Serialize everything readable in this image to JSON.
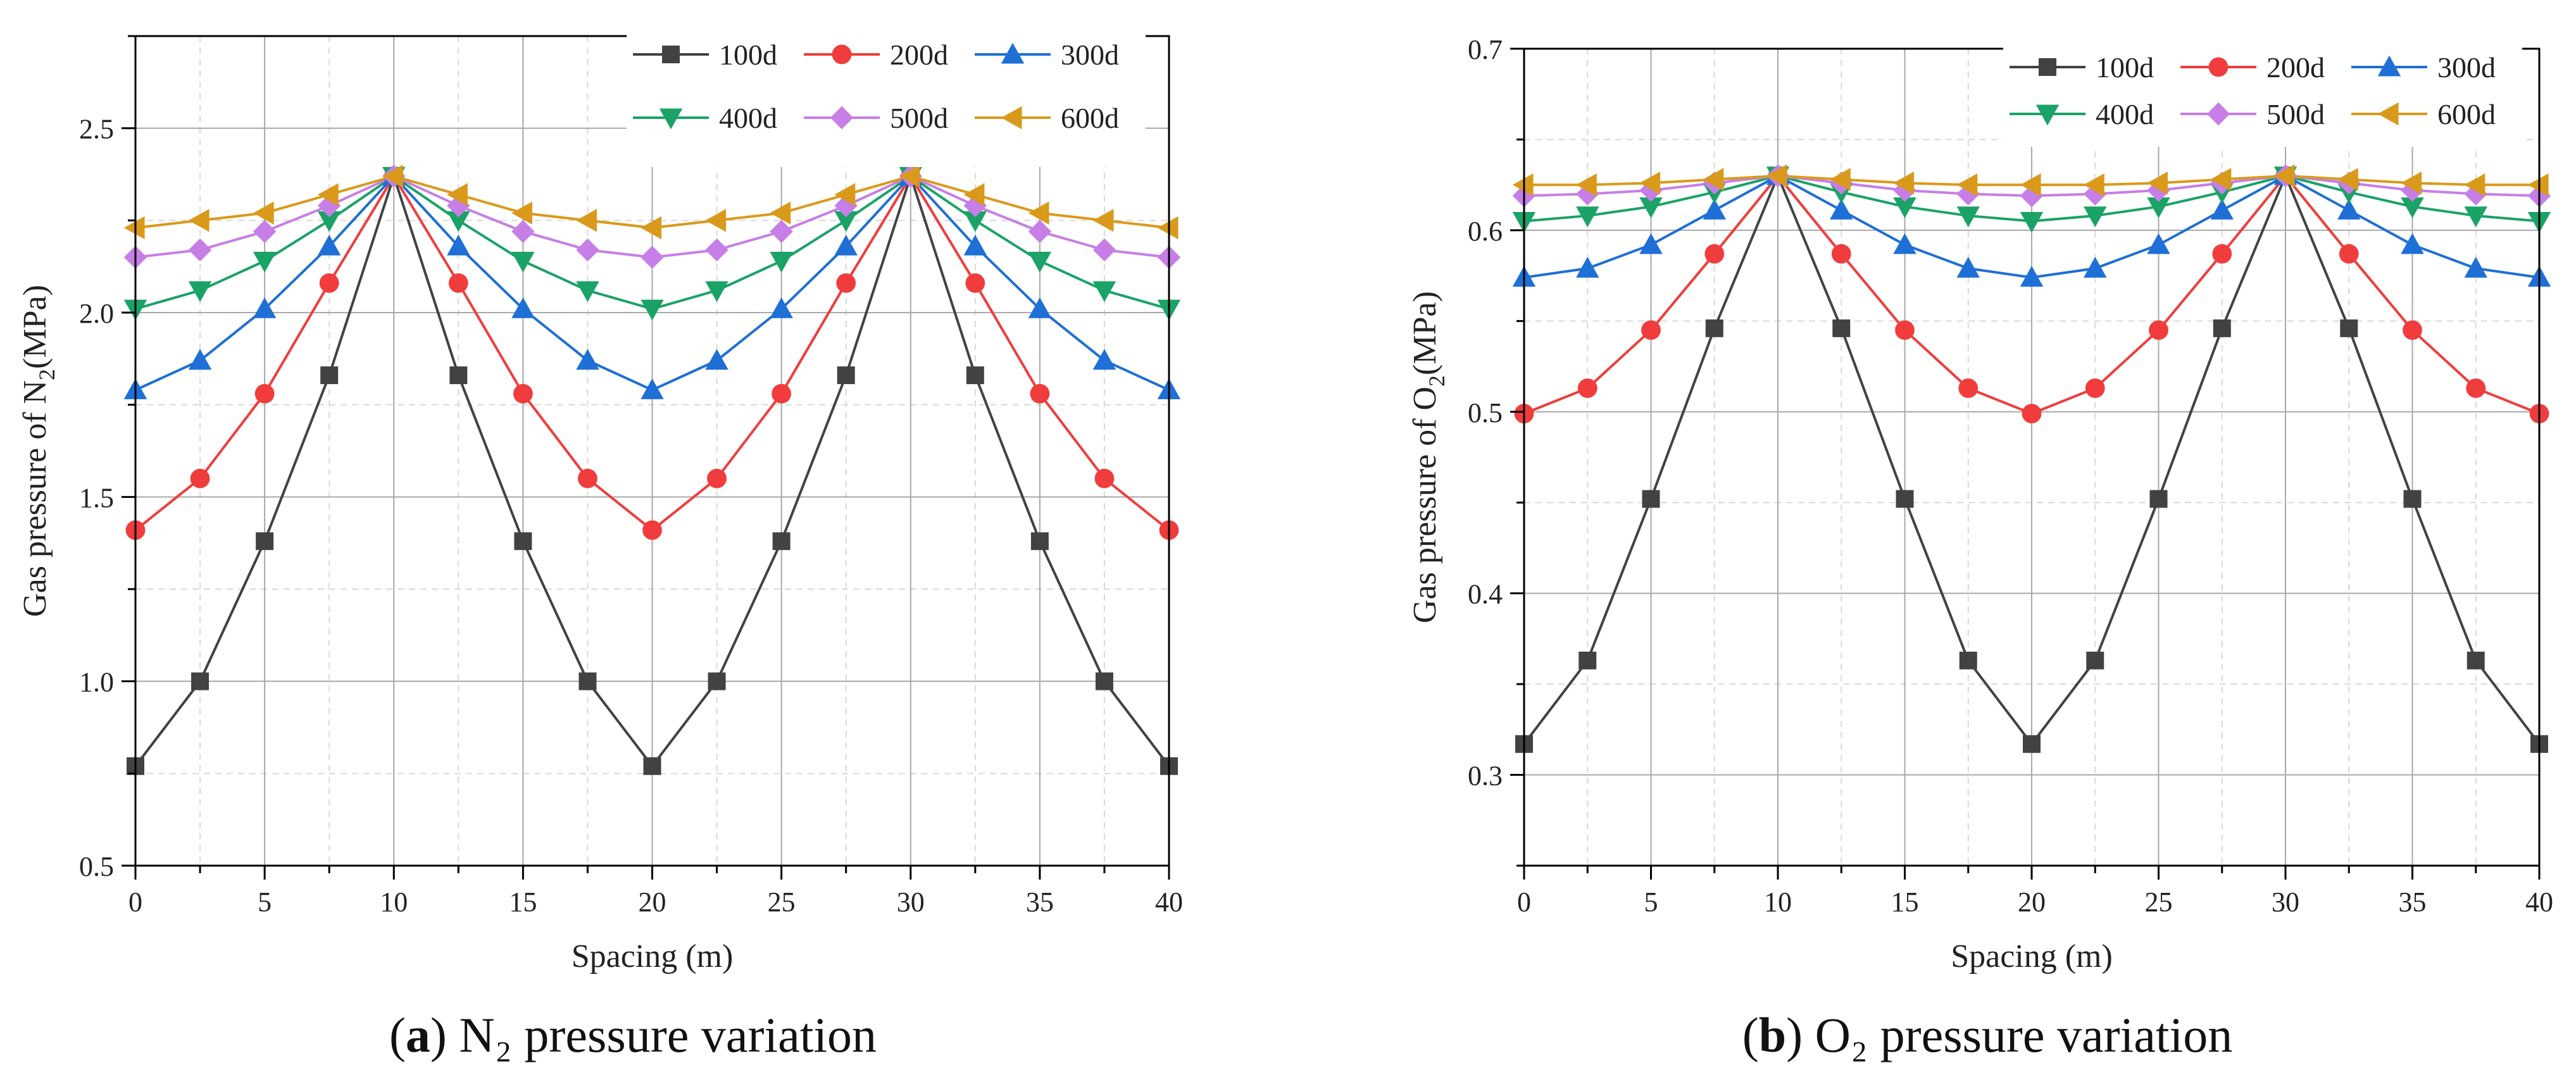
{
  "figure": {
    "captions": [
      {
        "letter": "a",
        "text": "N₂ pressure variation"
      },
      {
        "letter": "b",
        "text": "O₂ pressure variation"
      }
    ]
  },
  "chart_data": [
    {
      "type": "line",
      "title": "",
      "xlabel": "Spacing (m)",
      "ylabel": "Gas pressure of N2(MPa)",
      "ylabel_parts": {
        "pre": "Gas pressure of N",
        "sub": "2",
        "post": "(MPa)"
      },
      "xlim": [
        0,
        40
      ],
      "ylim": [
        0.5,
        2.75
      ],
      "xticks": [
        0,
        5,
        10,
        15,
        20,
        25,
        30,
        35,
        40
      ],
      "yticks": [
        0.5,
        1.0,
        1.5,
        2.0,
        2.5
      ],
      "ytick_labels": [
        "0.5",
        "1.0",
        "1.5",
        "2.0",
        "2.5"
      ],
      "grid": true,
      "legend": {
        "position": "top-right",
        "columns": 3
      },
      "x": [
        0,
        2.5,
        5,
        7.5,
        10,
        12.5,
        15,
        17.5,
        20,
        22.5,
        25,
        27.5,
        30,
        32.5,
        35,
        37.5,
        40
      ],
      "series": [
        {
          "name": "100d",
          "color": "#424242",
          "marker": "square",
          "values": [
            0.77,
            1.0,
            1.38,
            1.83,
            2.37,
            1.83,
            1.38,
            1.0,
            0.77,
            1.0,
            1.38,
            1.83,
            2.37,
            1.83,
            1.38,
            1.0,
            0.77
          ]
        },
        {
          "name": "200d",
          "color": "#f03c3c",
          "marker": "circle",
          "values": [
            1.41,
            1.55,
            1.78,
            2.08,
            2.37,
            2.08,
            1.78,
            1.55,
            1.41,
            1.55,
            1.78,
            2.08,
            2.37,
            2.08,
            1.78,
            1.55,
            1.41
          ]
        },
        {
          "name": "300d",
          "color": "#1e6fd6",
          "marker": "triangle-up",
          "values": [
            1.79,
            1.87,
            2.01,
            2.18,
            2.37,
            2.18,
            2.01,
            1.87,
            1.79,
            1.87,
            2.01,
            2.18,
            2.37,
            2.18,
            2.01,
            1.87,
            1.79
          ]
        },
        {
          "name": "400d",
          "color": "#1aa267",
          "marker": "triangle-down",
          "values": [
            2.01,
            2.06,
            2.14,
            2.25,
            2.37,
            2.25,
            2.14,
            2.06,
            2.01,
            2.06,
            2.14,
            2.25,
            2.37,
            2.25,
            2.14,
            2.06,
            2.01
          ]
        },
        {
          "name": "500d",
          "color": "#c77ee6",
          "marker": "diamond",
          "values": [
            2.15,
            2.17,
            2.22,
            2.29,
            2.37,
            2.29,
            2.22,
            2.17,
            2.15,
            2.17,
            2.22,
            2.29,
            2.37,
            2.29,
            2.22,
            2.17,
            2.15
          ]
        },
        {
          "name": "600d",
          "color": "#d99a1b",
          "marker": "triangle-left",
          "values": [
            2.23,
            2.25,
            2.27,
            2.32,
            2.37,
            2.32,
            2.27,
            2.25,
            2.23,
            2.25,
            2.27,
            2.32,
            2.37,
            2.32,
            2.27,
            2.25,
            2.23
          ]
        }
      ]
    },
    {
      "type": "line",
      "title": "",
      "xlabel": "Spacing (m)",
      "ylabel": "Gas pressure of O2(MPa)",
      "ylabel_parts": {
        "pre": "Gas pressure of O",
        "sub": "2",
        "post": "(MPa)"
      },
      "xlim": [
        0,
        40
      ],
      "ylim": [
        0.25,
        0.7
      ],
      "xticks": [
        0,
        5,
        10,
        15,
        20,
        25,
        30,
        35,
        40
      ],
      "yticks": [
        0.3,
        0.4,
        0.5,
        0.6,
        0.7
      ],
      "ytick_labels": [
        "0.3",
        "0.4",
        "0.5",
        "0.6",
        "0.7"
      ],
      "grid": true,
      "legend": {
        "position": "top-right",
        "columns": 3
      },
      "x": [
        0,
        2.5,
        5,
        7.5,
        10,
        12.5,
        15,
        17.5,
        20,
        22.5,
        25,
        27.5,
        30,
        32.5,
        35,
        37.5,
        40
      ],
      "series": [
        {
          "name": "100d",
          "color": "#424242",
          "marker": "square",
          "values": [
            0.317,
            0.363,
            0.452,
            0.546,
            0.63,
            0.546,
            0.452,
            0.363,
            0.317,
            0.363,
            0.452,
            0.546,
            0.63,
            0.546,
            0.452,
            0.363,
            0.317
          ]
        },
        {
          "name": "200d",
          "color": "#f03c3c",
          "marker": "circle",
          "values": [
            0.499,
            0.513,
            0.545,
            0.587,
            0.63,
            0.587,
            0.545,
            0.513,
            0.499,
            0.513,
            0.545,
            0.587,
            0.63,
            0.587,
            0.545,
            0.513,
            0.499
          ]
        },
        {
          "name": "300d",
          "color": "#1e6fd6",
          "marker": "triangle-up",
          "values": [
            0.574,
            0.579,
            0.592,
            0.611,
            0.63,
            0.611,
            0.592,
            0.579,
            0.574,
            0.579,
            0.592,
            0.611,
            0.63,
            0.611,
            0.592,
            0.579,
            0.574
          ]
        },
        {
          "name": "400d",
          "color": "#1aa267",
          "marker": "triangle-down",
          "values": [
            0.605,
            0.608,
            0.613,
            0.621,
            0.63,
            0.621,
            0.613,
            0.608,
            0.605,
            0.608,
            0.613,
            0.621,
            0.63,
            0.621,
            0.613,
            0.608,
            0.605
          ]
        },
        {
          "name": "500d",
          "color": "#c77ee6",
          "marker": "diamond",
          "values": [
            0.619,
            0.62,
            0.622,
            0.626,
            0.63,
            0.626,
            0.622,
            0.62,
            0.619,
            0.62,
            0.622,
            0.626,
            0.63,
            0.626,
            0.622,
            0.62,
            0.619
          ]
        },
        {
          "name": "600d",
          "color": "#d99a1b",
          "marker": "triangle-left",
          "values": [
            0.625,
            0.625,
            0.626,
            0.628,
            0.63,
            0.628,
            0.626,
            0.625,
            0.625,
            0.625,
            0.626,
            0.628,
            0.63,
            0.628,
            0.626,
            0.625,
            0.625
          ]
        }
      ]
    }
  ]
}
